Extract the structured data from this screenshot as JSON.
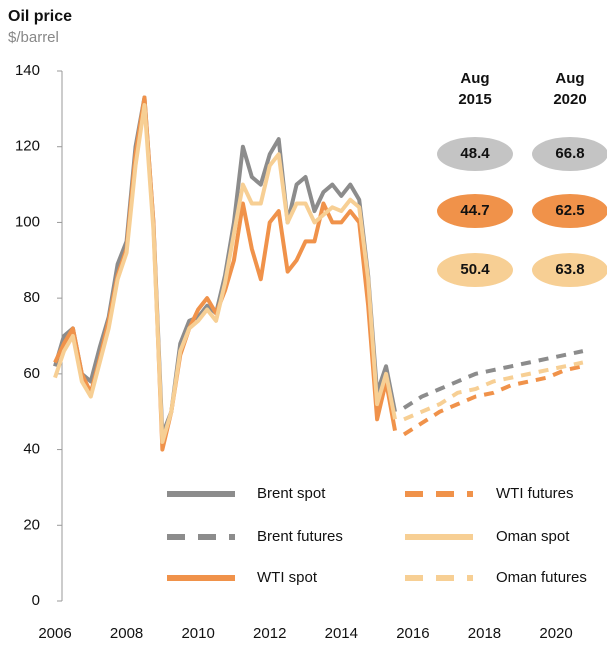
{
  "chart_data": {
    "type": "line",
    "title": "Oil price",
    "subtitle": "$/barrel",
    "xlim": [
      2006,
      2021.2
    ],
    "xticks": [
      2006,
      2008,
      2010,
      2012,
      2014,
      2016,
      2018,
      2020
    ],
    "ylim": [
      0,
      140
    ],
    "yticks": [
      0,
      20,
      40,
      60,
      80,
      100,
      120,
      140
    ],
    "series": [
      {
        "name": "Brent spot",
        "color": "#8c8c8c",
        "dash": false,
        "x": [
          2006,
          2006.25,
          2006.5,
          2006.75,
          2007,
          2007.25,
          2007.5,
          2007.75,
          2008,
          2008.25,
          2008.5,
          2008.75,
          2009,
          2009.25,
          2009.5,
          2009.75,
          2010,
          2010.25,
          2010.5,
          2010.75,
          2011,
          2011.25,
          2011.5,
          2011.75,
          2012,
          2012.25,
          2012.5,
          2012.75,
          2013,
          2013.25,
          2013.5,
          2013.75,
          2014,
          2014.25,
          2014.5,
          2014.75,
          2015,
          2015.25,
          2015.5
        ],
        "values": [
          62,
          70,
          72,
          60,
          58,
          67,
          75,
          89,
          95,
          120,
          133,
          100,
          44,
          50,
          68,
          74,
          75,
          78,
          76,
          86,
          100,
          120,
          112,
          110,
          118,
          122,
          100,
          110,
          112,
          103,
          108,
          110,
          107,
          110,
          106,
          86,
          55,
          62,
          50
        ]
      },
      {
        "name": "Brent futures",
        "color": "#8c8c8c",
        "dash": true,
        "x": [
          2015.75,
          2016.25,
          2016.75,
          2017.25,
          2017.75,
          2018.25,
          2018.75,
          2019.25,
          2019.75,
          2020.25,
          2020.75
        ],
        "values": [
          51,
          54,
          56,
          58,
          60,
          61,
          62,
          63,
          64,
          65,
          66
        ]
      },
      {
        "name": "WTI spot",
        "color": "#f0924a",
        "dash": false,
        "x": [
          2006,
          2006.25,
          2006.5,
          2006.75,
          2007,
          2007.25,
          2007.5,
          2007.75,
          2008,
          2008.25,
          2008.5,
          2008.75,
          2009,
          2009.25,
          2009.5,
          2009.75,
          2010,
          2010.25,
          2010.5,
          2010.75,
          2011,
          2011.25,
          2011.5,
          2011.75,
          2012,
          2012.25,
          2012.5,
          2012.75,
          2013,
          2013.25,
          2013.5,
          2013.75,
          2014,
          2014.25,
          2014.5,
          2014.75,
          2015,
          2015.25,
          2015.5
        ],
        "values": [
          63,
          68,
          72,
          60,
          55,
          64,
          74,
          86,
          93,
          118,
          133,
          100,
          40,
          50,
          65,
          72,
          77,
          80,
          76,
          82,
          90,
          105,
          93,
          85,
          100,
          103,
          87,
          90,
          95,
          95,
          105,
          100,
          100,
          103,
          100,
          78,
          48,
          58,
          45
        ]
      },
      {
        "name": "WTI futures",
        "color": "#f0924a",
        "dash": true,
        "x": [
          2015.75,
          2016.25,
          2016.75,
          2017.25,
          2017.75,
          2018.25,
          2018.75,
          2019.25,
          2019.75,
          2020.25,
          2020.75
        ],
        "values": [
          44,
          47,
          50,
          52,
          54,
          55,
          57,
          58,
          59,
          61,
          62
        ]
      },
      {
        "name": "Oman spot",
        "color": "#f7cf94",
        "dash": false,
        "x": [
          2006,
          2006.25,
          2006.5,
          2006.75,
          2007,
          2007.25,
          2007.5,
          2007.75,
          2008,
          2008.25,
          2008.5,
          2008.75,
          2009,
          2009.25,
          2009.5,
          2009.75,
          2010,
          2010.25,
          2010.5,
          2010.75,
          2011,
          2011.25,
          2011.5,
          2011.75,
          2012,
          2012.25,
          2012.5,
          2012.75,
          2013,
          2013.25,
          2013.5,
          2013.75,
          2014,
          2014.25,
          2014.5,
          2014.75,
          2015,
          2015.25,
          2015.5
        ],
        "values": [
          59,
          66,
          70,
          58,
          54,
          63,
          72,
          85,
          92,
          115,
          131,
          98,
          42,
          50,
          66,
          72,
          74,
          77,
          74,
          84,
          97,
          110,
          105,
          105,
          115,
          118,
          100,
          105,
          105,
          100,
          102,
          104,
          103,
          106,
          104,
          85,
          52,
          60,
          48
        ]
      },
      {
        "name": "Oman futures",
        "color": "#f7cf94",
        "dash": true,
        "x": [
          2015.75,
          2016.25,
          2016.75,
          2017.25,
          2017.75,
          2018.25,
          2018.75,
          2019.25,
          2019.75,
          2020.25,
          2020.75
        ],
        "values": [
          48,
          50,
          52,
          55,
          56,
          58,
          59,
          60,
          61,
          62,
          63
        ]
      }
    ],
    "summary": {
      "columns": [
        [
          "Aug",
          "2015"
        ],
        [
          "Aug",
          "2020"
        ]
      ],
      "rows": [
        {
          "color": "#c4c4c4",
          "values": [
            48.4,
            66.8
          ]
        },
        {
          "color": "#f0924a",
          "values": [
            44.7,
            62.5
          ]
        },
        {
          "color": "#f7cf94",
          "values": [
            50.4,
            63.8
          ]
        }
      ]
    }
  }
}
